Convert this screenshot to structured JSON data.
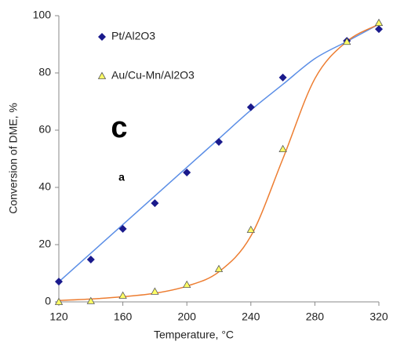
{
  "chart_data": {
    "type": "scatter",
    "x_label": "Temperature, °C",
    "y_label": "Conversion of DME, %",
    "xlim": [
      120,
      320
    ],
    "xticks": [
      120,
      160,
      200,
      240,
      280,
      320
    ],
    "ylim": [
      0,
      100
    ],
    "yticks": [
      0,
      20,
      40,
      60,
      80,
      100
    ],
    "legend": "upper left",
    "series": [
      {
        "name": "Pt/Al2O3",
        "color": "#1a1a8c",
        "marker": "diamond",
        "x": [
          120,
          140,
          160,
          180,
          200,
          220,
          240,
          260,
          300,
          320
        ],
        "values": [
          7.1,
          14.8,
          25.5,
          34.5,
          45.2,
          55.9,
          68,
          78.4,
          91.2,
          95.3
        ]
      },
      {
        "name": "Au/Cu-Mn/Al2O3",
        "color": "#ffff66",
        "marker": "triangle",
        "x": [
          120,
          140,
          160,
          180,
          200,
          220,
          240,
          260,
          300,
          320
        ],
        "values": [
          0,
          0.3,
          2.2,
          3.6,
          6,
          11.5,
          25.2,
          53.4,
          90.9,
          97.5
        ]
      }
    ],
    "fits": [
      {
        "color": "#5b8ee6",
        "x": [
          120,
          140,
          160,
          180,
          200,
          220,
          240,
          260,
          280,
          300,
          320
        ],
        "values": [
          7,
          17,
          27,
          37,
          47,
          57,
          67,
          76,
          85,
          91,
          97
        ]
      },
      {
        "color": "#ed7d31",
        "x": [
          120,
          140,
          160,
          180,
          200,
          220,
          240,
          260,
          280,
          300,
          320
        ],
        "values": [
          0.5,
          1,
          1.8,
          3,
          5.5,
          10.5,
          23,
          50,
          78,
          91,
          97
        ]
      }
    ],
    "annotations": [
      "c",
      "a"
    ]
  }
}
